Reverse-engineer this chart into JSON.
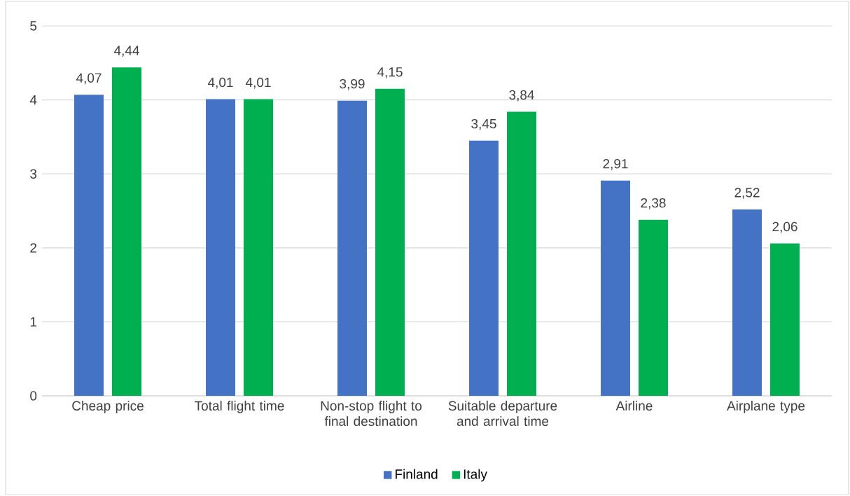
{
  "chart_data": {
    "type": "bar",
    "categories": [
      "Cheap price",
      "Total flight time",
      "Non-stop flight to final destination",
      "Suitable departure and arrival time",
      "Airline",
      "Airplane type"
    ],
    "series": [
      {
        "name": "Finland",
        "color": "#4472c4",
        "values": [
          4.07,
          4.01,
          3.99,
          3.45,
          2.91,
          2.52
        ],
        "value_labels": [
          "4,07",
          "4,01",
          "3,99",
          "3,45",
          "2,91",
          "2,52"
        ]
      },
      {
        "name": "Italy",
        "color": "#00b050",
        "values": [
          4.44,
          4.01,
          4.15,
          3.84,
          2.38,
          2.06
        ],
        "value_labels": [
          "4,44",
          "4,01",
          "4,15",
          "3,84",
          "2,38",
          "2,06"
        ]
      }
    ],
    "ylim": [
      0,
      5
    ],
    "yticks": [
      0,
      1,
      2,
      3,
      4,
      5
    ],
    "grid": "y",
    "legend": "bottom"
  }
}
